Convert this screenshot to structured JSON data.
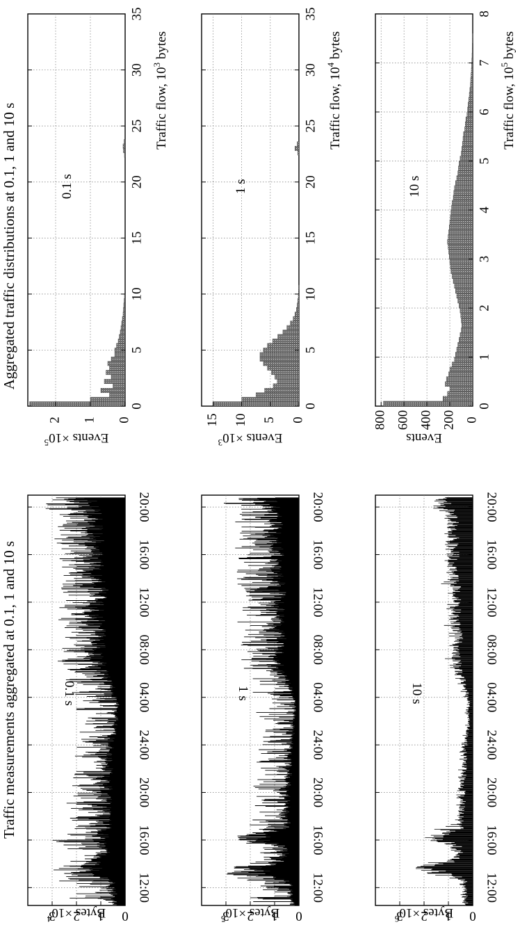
{
  "chart_data": [
    {
      "id": "traffic-01s",
      "type": "line",
      "group_title": "Traffic measurements aggregated at 0.1, 1 and 10 s",
      "annotation": "0.1 s",
      "ylabel_text": "Bytes ×10",
      "ylabel_exp": "4",
      "ylim": [
        0,
        4
      ],
      "yticks": [
        0,
        1,
        2,
        3
      ],
      "xticks": [
        "12:00",
        "16:00",
        "20:00",
        "24:00",
        "04:00",
        "08:00",
        "12:00",
        "16:00",
        "20:00"
      ],
      "x_hours_range": [
        10.5,
        45
      ],
      "series": [
        {
          "x_hours": [
            10.5,
            11,
            11.5,
            12,
            12.5,
            13,
            13.5,
            13.8,
            14,
            14.5,
            15,
            15.5,
            16,
            16.5,
            17,
            17.5,
            18,
            18.5,
            19,
            19.5,
            20,
            20.5,
            21,
            21.5,
            22,
            22.5,
            23,
            23.5,
            24,
            24.5,
            25,
            25.5,
            26,
            26.5,
            27,
            27.5,
            28,
            28.5,
            29,
            29.5,
            30,
            30.5,
            31,
            31.5,
            32,
            32.5,
            33,
            33.5,
            34,
            34.5,
            35,
            35.5,
            36,
            36.5,
            37,
            37.5,
            38,
            38.5,
            39,
            39.5,
            40,
            40.5,
            41,
            41.5,
            42,
            42.5,
            43,
            43.5,
            44,
            44.5
          ],
          "y_base": [
            0.5,
            0.6,
            0.6,
            0.7,
            0.7,
            1.4,
            1.6,
            1.8,
            1.5,
            1.2,
            1.0,
            1.2,
            1.3,
            1.1,
            1.0,
            0.9,
            1.1,
            1.0,
            1.0,
            0.9,
            0.9,
            0.9,
            1.0,
            0.9,
            0.9,
            1.0,
            0.9,
            0.8,
            0.8,
            0.7,
            0.6,
            0.6,
            0.5,
            0.5,
            0.4,
            0.4,
            0.5,
            0.6,
            0.8,
            1.0,
            1.2,
            1.3,
            1.4,
            1.5,
            1.5,
            1.4,
            1.3,
            1.4,
            1.5,
            1.5,
            1.4,
            1.5,
            1.5,
            1.3,
            1.2,
            1.4,
            1.5,
            1.6,
            1.5,
            1.6,
            1.5,
            1.4,
            1.5,
            1.6,
            1.7,
            1.5,
            1.5,
            1.6,
            1.9,
            2.0
          ],
          "y_peak": [
            2.3,
            2.4,
            2.2,
            2.2,
            2.6,
            3.7,
            3.0,
            2.7,
            2.5,
            2.4,
            2.5,
            2.6,
            3.0,
            2.6,
            2.4,
            2.3,
            2.4,
            2.4,
            2.5,
            2.2,
            2.3,
            2.2,
            2.1,
            2.3,
            2.2,
            2.2,
            2.3,
            2.2,
            2.1,
            2.0,
            1.9,
            1.8,
            1.7,
            2.3,
            2.2,
            1.8,
            1.9,
            2.4,
            2.3,
            2.5,
            2.6,
            2.5,
            2.8,
            2.7,
            2.6,
            2.8,
            2.7,
            2.5,
            2.7,
            2.8,
            2.6,
            2.7,
            2.9,
            2.7,
            2.6,
            2.8,
            2.9,
            2.8,
            3.0,
            2.9,
            2.8,
            2.9,
            3.0,
            2.9,
            2.8,
            2.9,
            3.0,
            3.1,
            3.4,
            3.3
          ]
        }
      ]
    },
    {
      "id": "traffic-1s",
      "type": "line",
      "annotation": "1 s",
      "ylabel_text": "Bytes ×10",
      "ylabel_exp": "5",
      "ylim": [
        0,
        4
      ],
      "yticks": [
        0,
        1,
        2,
        3
      ],
      "xticks": [
        "12:00",
        "16:00",
        "20:00",
        "24:00",
        "04:00",
        "08:00",
        "12:00",
        "16:00",
        "20:00"
      ],
      "x_hours_range": [
        10.5,
        45
      ],
      "series": [
        {
          "x_hours": [
            10.5,
            11,
            11.5,
            12,
            12.5,
            13,
            13.5,
            13.8,
            14,
            14.5,
            15,
            15.5,
            16,
            16.5,
            17,
            17.5,
            18,
            18.5,
            19,
            19.5,
            20,
            20.5,
            21,
            21.5,
            22,
            22.5,
            23,
            23.5,
            24,
            24.5,
            25,
            25.5,
            26,
            26.5,
            27,
            27.5,
            28,
            28.5,
            29,
            29.5,
            30,
            30.5,
            31,
            31.5,
            32,
            32.5,
            33,
            33.5,
            34,
            34.5,
            35,
            35.5,
            36,
            36.5,
            37,
            37.5,
            38,
            38.5,
            39,
            39.5,
            40,
            40.5,
            41,
            41.5,
            42,
            42.5,
            43,
            43.5,
            44,
            44.5
          ],
          "y_base": [
            0.3,
            0.4,
            0.4,
            0.4,
            0.5,
            1.9,
            2.2,
            2.3,
            1.2,
            0.8,
            0.7,
            0.9,
            2.2,
            2.0,
            0.7,
            0.6,
            0.8,
            0.7,
            0.6,
            0.6,
            0.5,
            0.6,
            0.6,
            0.5,
            0.5,
            0.5,
            0.5,
            0.4,
            0.4,
            0.4,
            0.3,
            0.3,
            0.3,
            0.2,
            0.2,
            0.2,
            0.3,
            0.4,
            0.5,
            0.7,
            0.9,
            1.0,
            1.0,
            1.1,
            1.0,
            0.9,
            0.9,
            1.0,
            1.1,
            1.1,
            1.0,
            1.1,
            1.1,
            1.0,
            0.9,
            1.0,
            1.1,
            1.2,
            1.1,
            1.2,
            1.1,
            1.1,
            1.2,
            1.3,
            1.2,
            1.2,
            1.2,
            1.3,
            1.4,
            1.6
          ],
          "y_peak": [
            2.2,
            2.0,
            2.2,
            1.8,
            2.0,
            3.7,
            3.0,
            2.6,
            2.1,
            1.8,
            1.6,
            2.0,
            2.6,
            2.5,
            2.4,
            2.0,
            2.2,
            1.9,
            2.0,
            1.8,
            1.7,
            1.9,
            1.8,
            1.8,
            1.7,
            1.8,
            1.7,
            1.7,
            1.6,
            1.6,
            1.5,
            1.4,
            1.3,
            2.1,
            2.2,
            1.4,
            1.4,
            2.0,
            2.1,
            2.2,
            2.5,
            2.3,
            2.4,
            2.4,
            2.2,
            2.5,
            2.4,
            2.3,
            2.5,
            2.6,
            2.4,
            2.5,
            2.6,
            2.5,
            2.4,
            2.6,
            2.8,
            2.6,
            2.7,
            2.7,
            2.6,
            2.7,
            2.8,
            2.7,
            2.6,
            2.7,
            2.8,
            2.9,
            3.3,
            3.2
          ]
        }
      ]
    },
    {
      "id": "traffic-10s",
      "type": "line",
      "annotation": "10 s",
      "ylabel_text": "Bytes ×10",
      "ylabel_exp": "6",
      "ylim": [
        0,
        4
      ],
      "yticks": [
        0,
        1,
        2,
        3
      ],
      "xticks": [
        "12:00",
        "16:00",
        "20:00",
        "24:00",
        "04:00",
        "08:00",
        "12:00",
        "16:00",
        "20:00"
      ],
      "x_hours_range": [
        10.5,
        45
      ],
      "series": [
        {
          "x_hours": [
            10.5,
            11,
            11.5,
            12,
            12.5,
            13,
            13.5,
            13.8,
            14,
            14.5,
            15,
            15.5,
            16,
            16.5,
            17,
            17.5,
            18,
            18.5,
            19,
            19.5,
            20,
            20.5,
            21,
            21.5,
            22,
            22.5,
            23,
            23.5,
            24,
            24.5,
            25,
            25.5,
            26,
            26.5,
            27,
            27.5,
            28,
            28.5,
            29,
            29.5,
            30,
            30.5,
            31,
            31.5,
            32,
            32.5,
            33,
            33.5,
            34,
            34.5,
            35,
            35.5,
            36,
            36.5,
            37,
            37.5,
            38,
            38.5,
            39,
            39.5,
            40,
            40.5,
            41,
            41.5,
            42,
            42.5,
            43,
            43.5,
            44,
            44.5
          ],
          "y_base": [
            0.3,
            0.4,
            0.3,
            0.4,
            0.4,
            0.8,
            2.0,
            2.2,
            1.4,
            0.7,
            0.6,
            0.8,
            1.7,
            1.4,
            0.6,
            0.5,
            0.6,
            0.6,
            0.5,
            0.5,
            0.5,
            0.5,
            0.5,
            0.4,
            0.4,
            0.4,
            0.4,
            0.4,
            0.3,
            0.3,
            0.3,
            0.2,
            0.2,
            0.2,
            0.2,
            0.2,
            0.2,
            0.3,
            0.4,
            0.5,
            0.7,
            0.8,
            0.8,
            0.9,
            0.8,
            0.8,
            0.7,
            0.8,
            0.9,
            0.9,
            0.8,
            0.9,
            0.9,
            0.8,
            0.8,
            0.9,
            0.9,
            1.0,
            0.9,
            1.0,
            0.9,
            0.9,
            1.0,
            1.0,
            1.0,
            1.0,
            1.0,
            1.1,
            1.2,
            1.4
          ],
          "y_peak": [
            0.5,
            0.6,
            0.5,
            0.6,
            0.6,
            3.6,
            2.4,
            2.3,
            2.2,
            1.0,
            0.9,
            1.0,
            2.1,
            2.0,
            1.9,
            0.7,
            0.8,
            0.8,
            0.7,
            0.7,
            0.7,
            0.7,
            0.7,
            0.6,
            0.6,
            0.6,
            0.6,
            0.6,
            0.5,
            0.5,
            0.4,
            0.4,
            0.4,
            0.4,
            0.4,
            0.3,
            0.4,
            0.5,
            0.6,
            0.7,
            0.9,
            1.0,
            1.1,
            1.2,
            1.1,
            1.0,
            1.0,
            1.1,
            1.2,
            1.2,
            1.1,
            1.2,
            1.2,
            1.1,
            1.1,
            2.1,
            1.2,
            1.3,
            1.2,
            1.3,
            1.2,
            1.2,
            1.3,
            1.3,
            1.3,
            1.3,
            1.4,
            1.5,
            2.3,
            1.8
          ]
        }
      ]
    },
    {
      "id": "dist-01s",
      "type": "bar",
      "group_title": "Aggregated traffic distributions at 0.1, 1 and 10 s",
      "annotation": "0.1 s",
      "ylabel_text": "Events ×10",
      "ylabel_exp": "5",
      "xlabel_text": "Traffic flow, 10",
      "xlabel_exp": "3",
      "xlabel_suffix": " bytes",
      "xlim": [
        0,
        35
      ],
      "xticks": [
        0,
        5,
        10,
        15,
        20,
        25,
        30,
        35
      ],
      "ylim": [
        0,
        2.8
      ],
      "yticks": [
        0,
        1,
        2
      ],
      "bin_width": 0.4,
      "x": [
        0.2,
        0.6,
        1.0,
        1.4,
        1.8,
        2.2,
        2.6,
        3.0,
        3.4,
        3.8,
        4.2,
        4.6,
        5.0,
        5.4,
        5.8,
        6.2,
        6.6,
        7.0,
        7.4,
        7.8,
        8.2,
        8.6,
        9.0,
        9.4,
        9.8,
        22.4,
        22.8,
        23.2,
        23.6
      ],
      "values": [
        2.75,
        1.0,
        0.45,
        0.7,
        0.35,
        0.6,
        0.4,
        0.55,
        0.45,
        0.5,
        0.4,
        0.3,
        0.3,
        0.25,
        0.2,
        0.17,
        0.14,
        0.12,
        0.1,
        0.08,
        0.06,
        0.05,
        0.04,
        0.03,
        0.02,
        0.02,
        0.05,
        0.06,
        0.03
      ]
    },
    {
      "id": "dist-1s",
      "type": "bar",
      "annotation": "1 s",
      "ylabel_text": "Events ×10",
      "ylabel_exp": "3",
      "xlabel_text": "Traffic flow, 10",
      "xlabel_exp": "4",
      "xlabel_suffix": " bytes",
      "xlim": [
        0,
        35
      ],
      "xticks": [
        0,
        5,
        10,
        15,
        20,
        25,
        30,
        35
      ],
      "ylim": [
        0,
        17
      ],
      "yticks": [
        0,
        5,
        10,
        15
      ],
      "bin_width": 0.4,
      "x": [
        0.2,
        0.6,
        1.0,
        1.4,
        1.8,
        2.2,
        2.6,
        3.0,
        3.4,
        3.8,
        4.2,
        4.6,
        5.0,
        5.4,
        5.8,
        6.2,
        6.6,
        7.0,
        7.4,
        7.8,
        8.2,
        8.6,
        9.0,
        9.4,
        9.8,
        10.2,
        10.6,
        22.6,
        23.0,
        23.4
      ],
      "values": [
        15.0,
        10.0,
        7.5,
        6.0,
        4.5,
        3.8,
        4.2,
        4.8,
        5.5,
        6.2,
        6.8,
        6.8,
        6.2,
        5.5,
        4.6,
        3.7,
        2.8,
        2.1,
        1.5,
        1.0,
        0.7,
        0.45,
        0.3,
        0.2,
        0.12,
        0.07,
        0.04,
        0.2,
        0.7,
        0.3
      ]
    },
    {
      "id": "dist-10s",
      "type": "bar",
      "annotation": "10 s",
      "ylabel_text": "Events",
      "ylabel_exp": "",
      "xlabel_text": "Traffic flow, 10",
      "xlabel_exp": "5",
      "xlabel_suffix": " bytes",
      "xlim": [
        0,
        8
      ],
      "xticks": [
        0,
        1,
        2,
        3,
        4,
        5,
        6,
        7,
        8
      ],
      "ylim": [
        0,
        850
      ],
      "yticks": [
        0,
        200,
        400,
        600,
        800
      ],
      "bin_width": 0.1,
      "x": [
        0.05,
        0.15,
        0.25,
        0.35,
        0.45,
        0.55,
        0.65,
        0.75,
        0.85,
        0.95,
        1.05,
        1.15,
        1.25,
        1.35,
        1.45,
        1.55,
        1.65,
        1.75,
        1.85,
        1.95,
        2.05,
        2.15,
        2.25,
        2.35,
        2.45,
        2.55,
        2.65,
        2.75,
        2.85,
        2.95,
        3.05,
        3.15,
        3.25,
        3.35,
        3.45,
        3.55,
        3.65,
        3.75,
        3.85,
        3.95,
        4.05,
        4.15,
        4.25,
        4.35,
        4.45,
        4.55,
        4.65,
        4.75,
        4.85,
        4.95,
        5.05,
        5.15,
        5.25,
        5.35,
        5.45,
        5.55,
        5.65,
        5.75,
        5.85,
        5.95,
        6.05,
        6.15,
        6.25,
        6.35,
        6.45,
        6.55,
        6.65,
        6.75,
        6.85,
        6.95,
        7.05,
        7.15,
        7.25,
        7.35,
        7.45,
        7.55
      ],
      "values": [
        780,
        260,
        220,
        200,
        240,
        230,
        210,
        200,
        180,
        160,
        150,
        140,
        130,
        120,
        110,
        100,
        95,
        100,
        105,
        110,
        120,
        130,
        140,
        150,
        160,
        170,
        180,
        190,
        195,
        200,
        205,
        210,
        215,
        220,
        215,
        210,
        205,
        200,
        195,
        190,
        185,
        180,
        170,
        165,
        160,
        150,
        140,
        130,
        125,
        120,
        110,
        100,
        95,
        90,
        85,
        80,
        70,
        65,
        60,
        50,
        45,
        40,
        35,
        30,
        25,
        20,
        18,
        15,
        12,
        10,
        8,
        6,
        5,
        4,
        3,
        2
      ]
    }
  ]
}
